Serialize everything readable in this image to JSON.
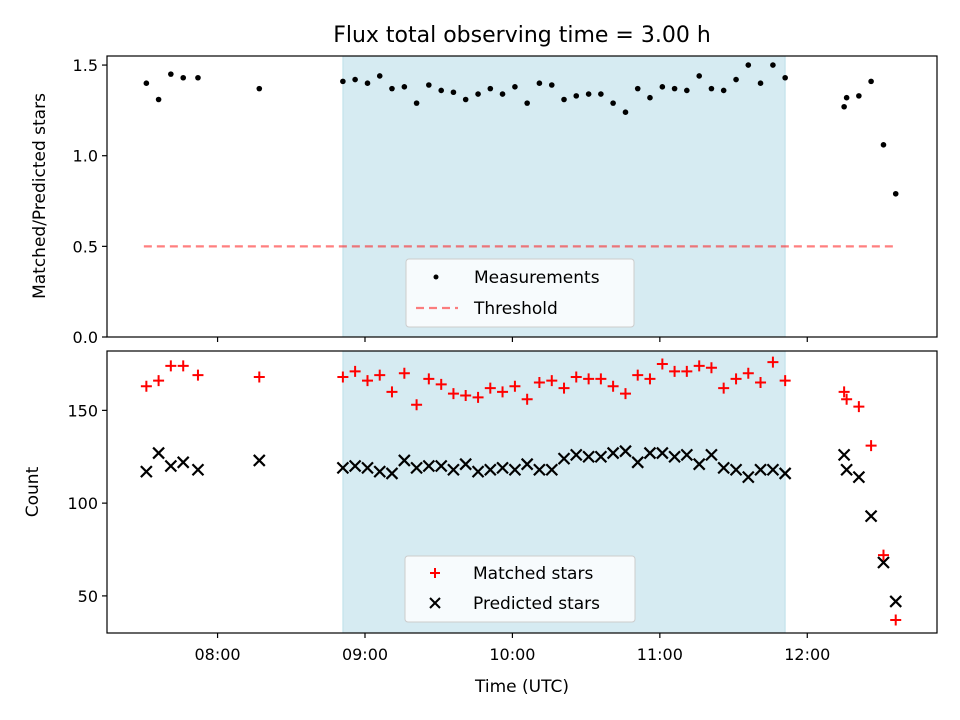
{
  "chart_data": [
    {
      "type": "scatter",
      "title": "Flux total observing time = 3.00 h",
      "xlabel": "",
      "ylabel": "Matched/Predicted stars",
      "xlim": [
        7.25,
        12.88
      ],
      "ylim": [
        0.0,
        1.55
      ],
      "yticks": [
        0.0,
        0.5,
        1.0,
        1.5
      ],
      "ytick_labels": [
        "0.0",
        "0.5",
        "1.0",
        "1.5"
      ],
      "grid": false,
      "legend_location": "lower-center",
      "shaded_span": {
        "start": 8.85,
        "end": 11.85,
        "color": "#add8e6"
      },
      "threshold": {
        "name": "Threshold",
        "value": 0.5,
        "x_start": 7.5,
        "x_end": 12.6,
        "color": "#ff0000",
        "style": "dashed"
      },
      "series": [
        {
          "name": "Measurements",
          "marker": "dot",
          "color": "#000000",
          "x": [
            7.517,
            7.6,
            7.683,
            7.767,
            7.867,
            8.283,
            8.85,
            8.933,
            9.017,
            9.1,
            9.183,
            9.267,
            9.35,
            9.433,
            9.517,
            9.6,
            9.683,
            9.767,
            9.85,
            9.933,
            10.017,
            10.1,
            10.183,
            10.267,
            10.35,
            10.433,
            10.517,
            10.6,
            10.683,
            10.767,
            10.85,
            10.933,
            11.017,
            11.1,
            11.183,
            11.267,
            11.35,
            11.433,
            11.517,
            11.6,
            11.683,
            11.767,
            11.85,
            12.25,
            12.267,
            12.35,
            12.433,
            12.517,
            12.6
          ],
          "y": [
            1.4,
            1.31,
            1.45,
            1.43,
            1.43,
            1.37,
            1.41,
            1.42,
            1.4,
            1.44,
            1.37,
            1.38,
            1.29,
            1.39,
            1.36,
            1.35,
            1.31,
            1.34,
            1.37,
            1.34,
            1.38,
            1.29,
            1.4,
            1.39,
            1.31,
            1.33,
            1.34,
            1.34,
            1.29,
            1.24,
            1.37,
            1.32,
            1.38,
            1.37,
            1.36,
            1.44,
            1.37,
            1.36,
            1.42,
            1.5,
            1.4,
            1.5,
            1.43,
            1.27,
            1.32,
            1.33,
            1.41,
            1.06,
            0.79
          ]
        }
      ]
    },
    {
      "type": "scatter",
      "title": "",
      "xlabel": "Time (UTC)",
      "ylabel": "Count",
      "xlim": [
        7.25,
        12.88
      ],
      "ylim": [
        30,
        182
      ],
      "yticks": [
        50,
        100,
        150
      ],
      "ytick_labels": [
        "50",
        "100",
        "150"
      ],
      "xticks": [
        8,
        9,
        10,
        11,
        12
      ],
      "xtick_labels": [
        "08:00",
        "09:00",
        "10:00",
        "11:00",
        "12:00"
      ],
      "grid": false,
      "legend_location": "lower-center",
      "shaded_span": {
        "start": 8.85,
        "end": 11.85,
        "color": "#add8e6"
      },
      "series": [
        {
          "name": "Matched stars",
          "marker": "plus",
          "color": "#ff0000",
          "x": [
            7.517,
            7.6,
            7.683,
            7.767,
            7.867,
            8.283,
            8.85,
            8.933,
            9.017,
            9.1,
            9.183,
            9.267,
            9.35,
            9.433,
            9.517,
            9.6,
            9.683,
            9.767,
            9.85,
            9.933,
            10.017,
            10.1,
            10.183,
            10.267,
            10.35,
            10.433,
            10.517,
            10.6,
            10.683,
            10.767,
            10.85,
            10.933,
            11.017,
            11.1,
            11.183,
            11.267,
            11.35,
            11.433,
            11.517,
            11.6,
            11.683,
            11.767,
            11.85,
            12.25,
            12.267,
            12.35,
            12.433,
            12.517,
            12.6
          ],
          "y": [
            163,
            166,
            174,
            174,
            169,
            168,
            168,
            171,
            166,
            169,
            160,
            170,
            153,
            167,
            164,
            159,
            158,
            157,
            162,
            160,
            163,
            156,
            165,
            166,
            162,
            168,
            167,
            167,
            163,
            159,
            169,
            167,
            175,
            171,
            171,
            174,
            173,
            162,
            167,
            170,
            165,
            176,
            166,
            160,
            156,
            152,
            131,
            72,
            37
          ]
        },
        {
          "name": "Predicted stars",
          "marker": "x",
          "color": "#000000",
          "x": [
            7.517,
            7.6,
            7.683,
            7.767,
            7.867,
            8.283,
            8.85,
            8.933,
            9.017,
            9.1,
            9.183,
            9.267,
            9.35,
            9.433,
            9.517,
            9.6,
            9.683,
            9.767,
            9.85,
            9.933,
            10.017,
            10.1,
            10.183,
            10.267,
            10.35,
            10.433,
            10.517,
            10.6,
            10.683,
            10.767,
            10.85,
            10.933,
            11.017,
            11.1,
            11.183,
            11.267,
            11.35,
            11.433,
            11.517,
            11.6,
            11.683,
            11.767,
            11.85,
            12.25,
            12.267,
            12.35,
            12.433,
            12.517,
            12.6
          ],
          "y": [
            117,
            127,
            120,
            122,
            118,
            123,
            119,
            120,
            119,
            117,
            116,
            123,
            119,
            120,
            120,
            118,
            121,
            117,
            118,
            119,
            118,
            121,
            118,
            118,
            124,
            126,
            125,
            125,
            127,
            128,
            122,
            127,
            127,
            125,
            126,
            121,
            126,
            119,
            118,
            114,
            118,
            118,
            116,
            126,
            118,
            114,
            93,
            68,
            47
          ]
        }
      ]
    }
  ]
}
